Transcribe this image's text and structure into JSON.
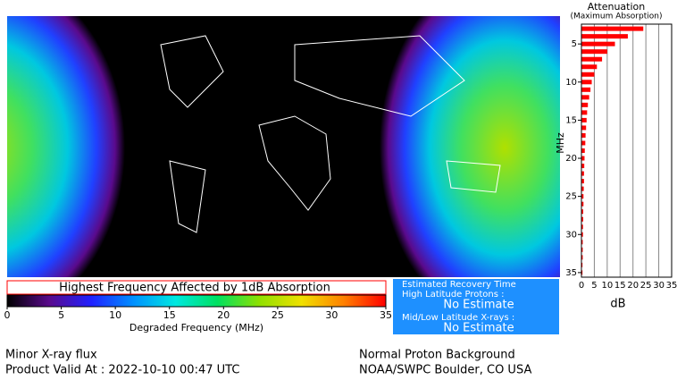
{
  "chart_data": [
    {
      "type": "bar",
      "orientation": "horizontal",
      "title": "Attenuation",
      "subtitle": "(Maximum Absorption)",
      "y_label": "MHz",
      "x_label": "dB",
      "y": [
        3,
        4,
        5,
        6,
        7,
        8,
        9,
        10,
        11,
        12,
        13,
        14,
        15,
        16,
        17,
        18,
        19,
        20,
        21,
        22,
        23,
        24,
        25,
        26,
        27,
        28,
        29,
        30,
        31,
        32,
        33,
        34,
        35
      ],
      "values": [
        24,
        18,
        13,
        10,
        8,
        6,
        5,
        4,
        3.5,
        3,
        2.5,
        2.2,
        2,
        1.8,
        1.6,
        1.5,
        1.3,
        1.2,
        1.1,
        1,
        1,
        0.9,
        0.8,
        0.8,
        0.7,
        0.7,
        0.6,
        0.6,
        0.5,
        0.5,
        0.5,
        0.4,
        0.4
      ],
      "color": "#ff0000",
      "xlim": [
        0,
        35
      ],
      "xticks": [
        0,
        5,
        10,
        15,
        20,
        25,
        30,
        35
      ],
      "ylim": [
        2.4,
        35.6
      ],
      "yticks": [
        5,
        10,
        15,
        20,
        25,
        30,
        35
      ],
      "grid": true
    },
    {
      "type": "colorbar",
      "title": "Highest Frequency Affected by 1dB Absorption",
      "x_label": "Degraded Frequency (MHz)",
      "xlim": [
        0,
        35
      ],
      "xticks": [
        0,
        5,
        10,
        15,
        20,
        25,
        30,
        35
      ],
      "colors": [
        "#000000",
        "#5a0a8c",
        "#2020ff",
        "#0090ff",
        "#00e8e0",
        "#00e060",
        "#90e000",
        "#f0e000",
        "#ff8000",
        "#ff0000"
      ]
    }
  ],
  "recovery": {
    "title": "Estimated Recovery Time",
    "high_label": "High Latitude Protons :",
    "high_value": "No Estimate",
    "low_label": "Mid/Low Latitude X-rays :",
    "low_value": "No Estimate"
  },
  "footer": {
    "left": [
      "Minor X-ray flux",
      "Product Valid At : 2022-10-10 00:47 UTC"
    ],
    "right": [
      "Normal Proton Background",
      "NOAA/SWPC Boulder, CO USA"
    ]
  }
}
